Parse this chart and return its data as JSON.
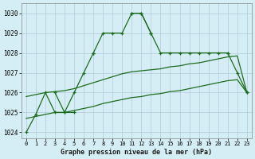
{
  "x": [
    0,
    1,
    2,
    3,
    4,
    5,
    6,
    7,
    8,
    9,
    10,
    11,
    12,
    13,
    14,
    15,
    16,
    17,
    18,
    19,
    20,
    21,
    22,
    23
  ],
  "line_marked": [
    1024.0,
    1024.9,
    1026.0,
    1025.0,
    1025.0,
    1026.0,
    1027.0,
    1028.0,
    1029.0,
    1029.0,
    1029.0,
    1030.0,
    1030.0,
    1029.0,
    1028.0,
    1028.0,
    1028.0,
    1028.0,
    1028.0,
    1028.0,
    1028.0,
    1028.0,
    1027.0,
    1026.0
  ],
  "line_spike": [
    null,
    null,
    null,
    1026.0,
    1025.0,
    1025.0,
    null,
    1028.0,
    null,
    null,
    null,
    1030.0,
    1030.0,
    1029.0,
    null,
    null,
    null,
    null,
    null,
    null,
    null,
    1028.0,
    null,
    1026.0
  ],
  "line_smooth_upper": [
    1025.8,
    1025.9,
    1026.0,
    1026.05,
    1026.1,
    1026.2,
    1026.35,
    1026.5,
    1026.65,
    1026.8,
    1026.95,
    1027.05,
    1027.1,
    1027.15,
    1027.2,
    1027.3,
    1027.35,
    1027.45,
    1027.5,
    1027.6,
    1027.7,
    1027.8,
    1027.85,
    1026.0
  ],
  "line_smooth_lower": [
    1024.7,
    1024.8,
    1024.9,
    1025.0,
    1025.0,
    1025.1,
    1025.2,
    1025.3,
    1025.45,
    1025.55,
    1025.65,
    1025.75,
    1025.8,
    1025.9,
    1025.95,
    1026.05,
    1026.1,
    1026.2,
    1026.3,
    1026.4,
    1026.5,
    1026.6,
    1026.65,
    1026.0
  ],
  "ylim": [
    1023.7,
    1030.5
  ],
  "yticks": [
    1024,
    1025,
    1026,
    1027,
    1028,
    1029,
    1030
  ],
  "xticks": [
    0,
    1,
    2,
    3,
    4,
    5,
    6,
    7,
    8,
    9,
    10,
    11,
    12,
    13,
    14,
    15,
    16,
    17,
    18,
    19,
    20,
    21,
    22,
    23
  ],
  "bg_color": "#d5eef5",
  "grid_color": "#b0ccda",
  "line_color": "#1e6b1e",
  "xlabel": "Graphe pression niveau de la mer (hPa)"
}
